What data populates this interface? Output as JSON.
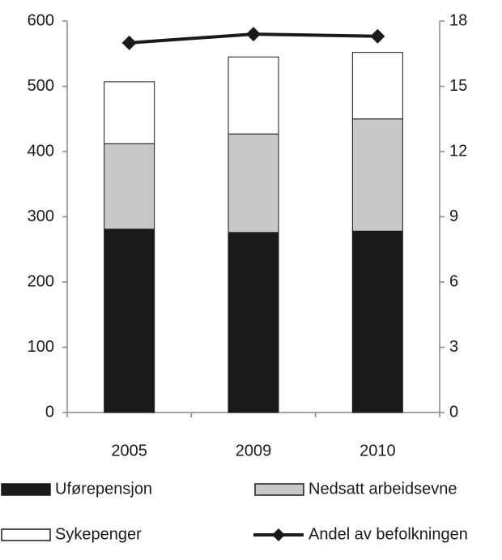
{
  "chart_data": {
    "type": "bar",
    "stacked": true,
    "categories": [
      "2005",
      "2009",
      "2010"
    ],
    "series": [
      {
        "name": "Uførepensjon",
        "color": "#1a1a1a",
        "values": [
          281,
          276,
          278
        ]
      },
      {
        "name": "Nedsatt arbeidsevne",
        "color": "#c8c8c8",
        "values": [
          131,
          151,
          172
        ]
      },
      {
        "name": "Sykepenger",
        "color": "#ffffff",
        "values": [
          95,
          118,
          102
        ]
      },
      {
        "name": "Andel av befolkningen",
        "color": "#1a1a1a",
        "type": "line",
        "axis": "y2",
        "values": [
          17.0,
          17.4,
          17.3
        ]
      }
    ],
    "ylim": [
      0,
      600
    ],
    "yticks": [
      0,
      100,
      200,
      300,
      400,
      500,
      600
    ],
    "y2lim": [
      0,
      18
    ],
    "y2ticks": [
      0,
      3,
      6,
      9,
      12,
      15,
      18
    ],
    "grid": false
  }
}
